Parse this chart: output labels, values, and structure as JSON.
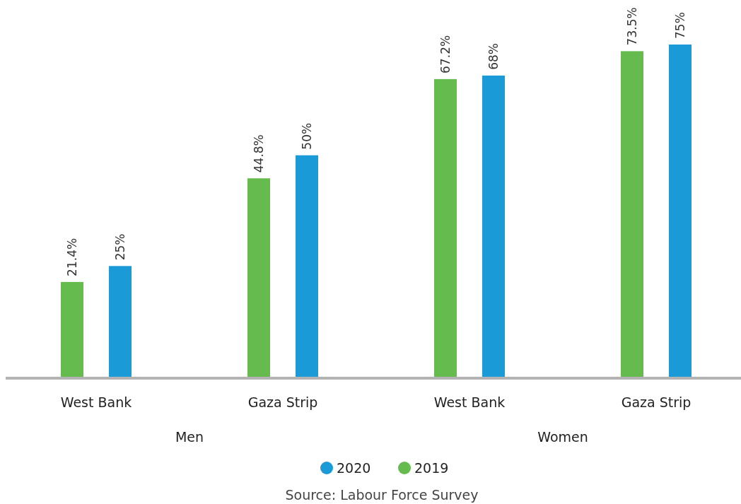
{
  "chart_data": {
    "type": "bar",
    "categories": [
      "West Bank",
      "Gaza Strip",
      "West Bank",
      "Gaza Strip"
    ],
    "series": [
      {
        "name": "2019",
        "color": "#66bb4f",
        "values": [
          21.4,
          44.8,
          67.2,
          73.5
        ],
        "value_labels": [
          "21.4%",
          "44.8%",
          "67.2%",
          "73.5%"
        ]
      },
      {
        "name": "2020",
        "color": "#1a9ad6",
        "values": [
          25,
          50,
          68,
          75
        ],
        "value_labels": [
          "25%",
          "50%",
          "68%",
          "75%"
        ]
      }
    ],
    "legend": "bottom",
    "tick_labels": "x",
    "annotations": [
      "Men",
      "Women",
      "Source: Labour Force Survey"
    ]
  }
}
